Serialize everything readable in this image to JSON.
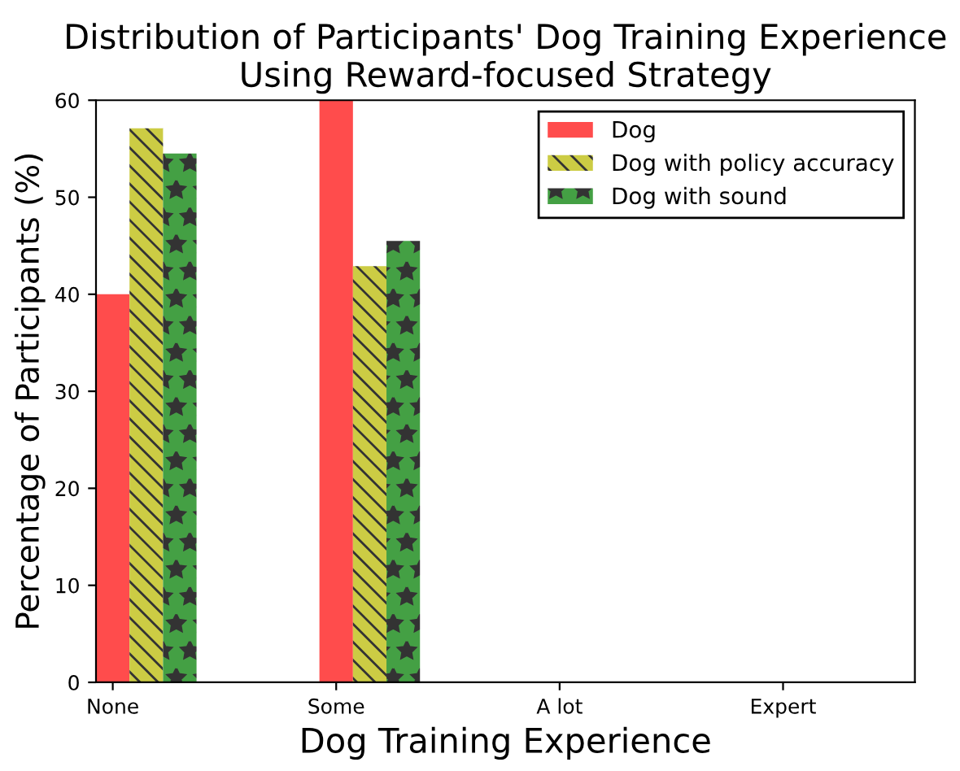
{
  "chart_data": {
    "type": "bar",
    "title": "Distribution of Participants' Dog Training Experience\nUsing Reward-focused Strategy",
    "xlabel": "Dog Training Experience",
    "ylabel": "Percentage of Participants (%)",
    "categories": [
      "None",
      "Some",
      "A lot",
      "Expert"
    ],
    "series": [
      {
        "name": "Dog",
        "color": "#ff4c4c",
        "values": [
          40,
          60,
          0,
          0
        ]
      },
      {
        "name": "Dog with policy accuracy",
        "color": "#cccc44",
        "values": [
          57.1,
          42.9,
          0,
          0
        ]
      },
      {
        "name": "Dog with sound",
        "color": "#44a044",
        "values": [
          54.5,
          45.5,
          0,
          0
        ]
      }
    ],
    "ylim": [
      0,
      60
    ],
    "yticks": [
      0,
      10,
      20,
      30,
      40,
      50,
      60
    ],
    "grid": false,
    "legend": "top right"
  }
}
